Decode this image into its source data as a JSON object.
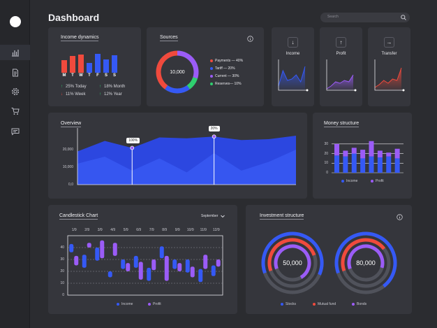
{
  "header": {
    "title": "Dashboard",
    "search_placeholder": "Search"
  },
  "sidebar": {
    "items": [
      {
        "icon": "bar-chart-icon",
        "active": true
      },
      {
        "icon": "document-icon"
      },
      {
        "icon": "gear-icon"
      },
      {
        "icon": "cart-icon"
      },
      {
        "icon": "chat-icon"
      }
    ]
  },
  "colors": {
    "red": "#f04a3d",
    "blue": "#3559f5",
    "purple": "#9b5cf7",
    "green": "#2fcf6f",
    "grey": "#50525b"
  },
  "income_dynamics": {
    "title": "Income dynamics",
    "days": [
      "M",
      "T",
      "W",
      "T",
      "F",
      "S",
      "S"
    ],
    "bars": [
      {
        "value": 55,
        "color": "red"
      },
      {
        "value": 75,
        "color": "red"
      },
      {
        "value": 80,
        "color": "red"
      },
      {
        "value": 45,
        "color": "blue"
      },
      {
        "value": 85,
        "color": "blue"
      },
      {
        "value": 60,
        "color": "blue"
      },
      {
        "value": 78,
        "color": "blue"
      }
    ],
    "stats": [
      {
        "arrow": "↑",
        "label": "25% Today",
        "dir": "up"
      },
      {
        "arrow": "↑",
        "label": "18% Month",
        "dir": "up"
      },
      {
        "arrow": "↓",
        "label": "11% Week",
        "dir": "down"
      },
      {
        "arrow": "↑",
        "label": "12% Year",
        "dir": "up"
      }
    ]
  },
  "sources": {
    "title": "Sources",
    "center_value": "10,000",
    "info_icon": "info-icon",
    "legend": [
      {
        "label": "Payments — 40%",
        "value": 40,
        "color": "red"
      },
      {
        "label": "Tariff — 20%",
        "value": 20,
        "color": "blue"
      },
      {
        "label": "Current — 30%",
        "value": 30,
        "color": "purple"
      },
      {
        "label": "Reserves— 10%",
        "value": 10,
        "color": "green"
      }
    ]
  },
  "mini_cards": [
    {
      "label": "Income",
      "arrow": "↓",
      "color": "blue",
      "points": [
        0.15,
        0.7,
        0.35,
        0.4,
        0.55,
        0.3,
        0.85
      ]
    },
    {
      "label": "Profit",
      "arrow": "↑",
      "color": "purple",
      "points": [
        0.05,
        0.15,
        0.3,
        0.25,
        0.35,
        0.3,
        0.55
      ]
    },
    {
      "label": "Transfer",
      "arrow": "→",
      "color": "red",
      "points": [
        0.1,
        0.2,
        0.35,
        0.25,
        0.4,
        0.35,
        0.8
      ]
    }
  ],
  "overview": {
    "title": "Overview",
    "y_ticks": [
      "20,000",
      "10,000",
      "0,0"
    ],
    "y_values": [
      20000,
      10000,
      0
    ],
    "ylim": [
      0,
      30000
    ],
    "back": [
      19000,
      25000,
      21000,
      27000,
      26500,
      27500,
      25500,
      26000,
      28000
    ],
    "front": [
      12000,
      16000,
      8000,
      15000,
      7000,
      18000,
      8000,
      13000,
      20000
    ],
    "markers": [
      {
        "index": 2,
        "label": "100%"
      },
      {
        "index": 5,
        "label": "20%"
      }
    ]
  },
  "money_structure": {
    "title": "Money structure",
    "y_ticks": [
      "30",
      "20",
      "10",
      "0"
    ],
    "y_values": [
      30,
      20,
      10,
      0
    ],
    "ylim": [
      0,
      35
    ],
    "income": [
      18,
      17,
      20,
      15,
      17,
      16,
      17,
      15
    ],
    "profit": [
      12,
      6,
      6,
      9,
      16,
      7,
      4,
      10
    ],
    "legend": [
      {
        "label": "Income",
        "color": "blue"
      },
      {
        "label": "Profit",
        "color": "purple"
      }
    ]
  },
  "candlestick": {
    "title": "Candlestick Chart",
    "month": "September",
    "x_labels": [
      "1/9",
      "2/9",
      "3/9",
      "4/9",
      "5/9",
      "6/9",
      "7/9",
      "8/9",
      "9/9",
      "10/9",
      "11/9",
      "12/9"
    ],
    "y_ticks": [
      "40",
      "30",
      "20",
      "10",
      "0"
    ],
    "y_values": [
      40,
      30,
      20,
      10,
      0
    ],
    "ylim": [
      0,
      50
    ],
    "candles": [
      {
        "blue": [
          36,
          43
        ],
        "purple": [
          25,
          33
        ]
      },
      {
        "blue": [
          23,
          34
        ],
        "purple": [
          40,
          44
        ]
      },
      {
        "blue": [
          29,
          40
        ],
        "purple": [
          31,
          46
        ]
      },
      {
        "blue": [
          15,
          20
        ],
        "purple": [
          33,
          44
        ]
      },
      {
        "blue": [
          22,
          30
        ],
        "purple": [
          20,
          27
        ]
      },
      {
        "blue": [
          23,
          33
        ],
        "purple": [
          13,
          28
        ]
      },
      {
        "blue": [
          12,
          23
        ],
        "purple": [
          21,
          30
        ]
      },
      {
        "blue": [
          31,
          41
        ],
        "purple": [
          12,
          33
        ]
      },
      {
        "blue": [
          22,
          30
        ],
        "purple": [
          20,
          27
        ]
      },
      {
        "blue": [
          19,
          30
        ],
        "purple": [
          15,
          24
        ]
      },
      {
        "blue": [
          11,
          22
        ],
        "purple": [
          22,
          34
        ]
      },
      {
        "blue": [
          16,
          25
        ],
        "purple": [
          24,
          30
        ]
      }
    ],
    "legend": [
      {
        "label": "Income",
        "color": "blue"
      },
      {
        "label": "Profit",
        "color": "purple"
      }
    ]
  },
  "investment": {
    "title": "Investment structure",
    "info_icon": "info-icon",
    "donuts": [
      {
        "value": "50,000",
        "rings": [
          0.62,
          0.5,
          0.72
        ]
      },
      {
        "value": "80,000",
        "rings": [
          0.7,
          0.45,
          0.6
        ]
      }
    ],
    "legend": [
      {
        "label": "Stocks",
        "color": "blue"
      },
      {
        "label": "Mutual fund",
        "color": "red"
      },
      {
        "label": "Bonds",
        "color": "purple"
      }
    ]
  }
}
